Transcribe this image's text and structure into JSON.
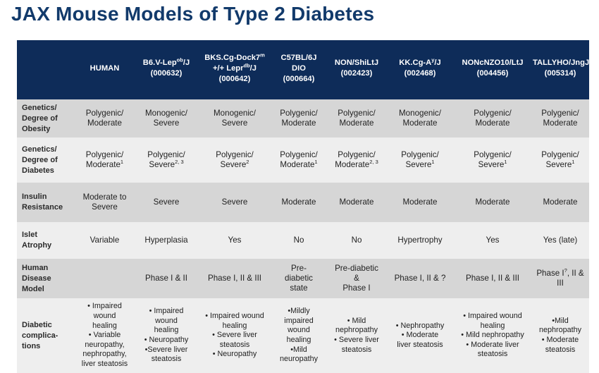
{
  "title": "JAX Mouse Models of Type 2 Diabetes",
  "colors": {
    "title": "#123a6b",
    "header_bg": "#0e2c59",
    "row_dark": "#d6d6d6",
    "row_light": "#eeeeee"
  },
  "columns": [
    {
      "key": "blank",
      "lines": []
    },
    {
      "key": "human",
      "lines": [
        "HUMAN"
      ]
    },
    {
      "key": "b6v",
      "lines": [
        "B6.V-Lep<sup>ob</sup>/J",
        "(000632)"
      ]
    },
    {
      "key": "bks",
      "lines": [
        "BKS.Cg-Dock7<sup>m</sup>",
        "+/+ Lepr<sup>db</sup>/J",
        "(000642)"
      ]
    },
    {
      "key": "c57",
      "lines": [
        "C57BL/6J",
        "DIO",
        "(000664)"
      ]
    },
    {
      "key": "non",
      "lines": [
        "NON/ShiLtJ",
        "(002423)"
      ]
    },
    {
      "key": "kk",
      "lines": [
        "KK.Cg-A<sup>y</sup>/J",
        "(002468)"
      ]
    },
    {
      "key": "nonc",
      "lines": [
        "NONcNZO10/LtJ",
        "(004456)"
      ]
    },
    {
      "key": "tally",
      "lines": [
        "TALLYHO/JngJ",
        "(005314)"
      ]
    }
  ],
  "rows": [
    {
      "label": [
        "Genetics/",
        "Degree of",
        "Obesity"
      ],
      "cells": [
        [
          "Polygenic/",
          "Moderate"
        ],
        [
          "Monogenic/",
          "Severe"
        ],
        [
          "Monogenic/",
          "Severe"
        ],
        [
          "Polygenic/",
          "Moderate"
        ],
        [
          "Polygenic/",
          "Moderate"
        ],
        [
          "Monogenic/",
          "Moderate"
        ],
        [
          "Polygenic/",
          "Moderate"
        ],
        [
          "Polygenic/",
          "Moderate"
        ]
      ]
    },
    {
      "label": [
        "Genetics/",
        "Degree of",
        "Diabetes"
      ],
      "cells": [
        [
          "Polygenic/",
          "Moderate<sup>1</sup>"
        ],
        [
          "Polygenic/",
          "Severe<sup>2, 3</sup>"
        ],
        [
          "Polygenic/",
          "Severe<sup>2</sup>"
        ],
        [
          "Polygenic/",
          "Moderate<sup>1</sup>"
        ],
        [
          "Polygenic/",
          "Moderate<sup>2, 3</sup>"
        ],
        [
          "Polygenic/",
          "Severe<sup>1</sup>"
        ],
        [
          "Polygenic/",
          "Severe<sup>1</sup>"
        ],
        [
          "Polygenic/",
          "Severe<sup>1</sup>"
        ]
      ]
    },
    {
      "label": [
        "Insulin",
        "Resistance"
      ],
      "cells": [
        [
          "Moderate to",
          "Severe"
        ],
        [
          "Severe"
        ],
        [
          "Severe"
        ],
        [
          "Moderate"
        ],
        [
          "Moderate"
        ],
        [
          "Moderate"
        ],
        [
          "Moderate"
        ],
        [
          "Moderate"
        ]
      ]
    },
    {
      "label": [
        "Islet",
        "Atrophy"
      ],
      "cells": [
        [
          "Variable"
        ],
        [
          "Hyperplasia"
        ],
        [
          "Yes"
        ],
        [
          "No"
        ],
        [
          "No"
        ],
        [
          "Hypertrophy"
        ],
        [
          "Yes"
        ],
        [
          "Yes (late)"
        ]
      ]
    },
    {
      "label": [
        "Human",
        "Disease",
        "Model"
      ],
      "cells": [
        [],
        [
          "Phase I & II"
        ],
        [
          "Phase I, II & III"
        ],
        [
          "Pre-",
          "diabetic",
          "state"
        ],
        [
          "Pre-diabetic",
          "&",
          "Phase I"
        ],
        [
          "Phase I, II & ?"
        ],
        [
          "Phase I, II & III"
        ],
        [
          "Phase I<sup>?</sup>, II & III"
        ]
      ]
    },
    {
      "label": [
        "Diabetic",
        "complica-",
        "tions"
      ],
      "bullets": true,
      "cells": [
        [
          "• Impaired",
          "wound",
          "healing",
          "• Variable",
          "neuropathy,",
          "nephropathy,",
          "liver steatosis"
        ],
        [
          "• Impaired",
          "wound",
          "healing",
          "• Neuropathy",
          "•Severe liver",
          "steatosis"
        ],
        [
          "• Impaired wound",
          "healing",
          "• Severe liver",
          "steatosis",
          "• Neuropathy"
        ],
        [
          "•Mildly",
          "impaired",
          "wound",
          "healing",
          "•Mild",
          "neuropathy"
        ],
        [
          "• Mild",
          "nephropathy",
          "• Severe liver",
          "steatosis"
        ],
        [
          "• Nephropathy",
          "• Moderate",
          "liver steatosis"
        ],
        [
          "• Impaired wound",
          "healing",
          "• Mild nephropathy",
          "• Moderate liver",
          "steatosis"
        ],
        [
          "•Mild",
          "nephropathy",
          "• Moderate",
          "steatosis"
        ]
      ]
    }
  ]
}
